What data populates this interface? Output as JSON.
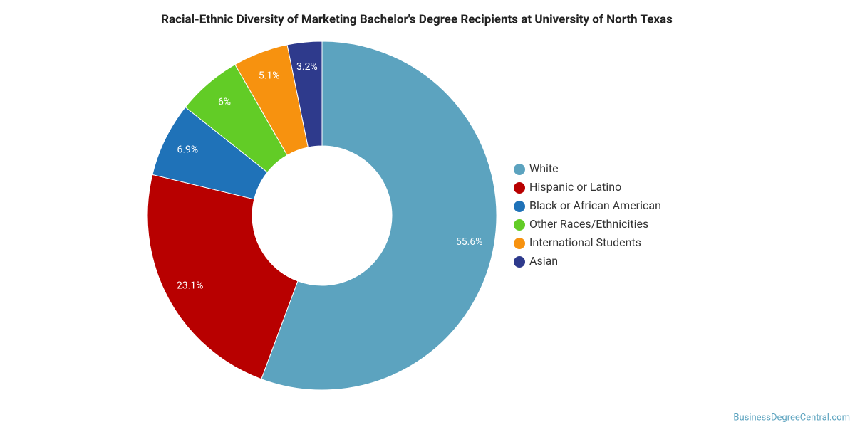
{
  "chart_data": {
    "type": "donut",
    "title": "Racial-Ethnic Diversity of Marketing Bachelor's Degree Recipients at University of North Texas",
    "categories": [
      "White",
      "Hispanic or Latino",
      "Black or African American",
      "Other Races/Ethnicities",
      "International Students",
      "Asian"
    ],
    "values": [
      55.6,
      23.1,
      6.9,
      6,
      5.1,
      3.2
    ],
    "value_labels": [
      "55.6%",
      "23.1%",
      "6.9%",
      "6%",
      "5.1%",
      "3.2%"
    ],
    "colors": [
      "#5ca3bf",
      "#b80000",
      "#1f72b8",
      "#62cc26",
      "#f7920f",
      "#2e3a8c"
    ],
    "legend": "right",
    "source": "BusinessDegreeCentral.com"
  }
}
